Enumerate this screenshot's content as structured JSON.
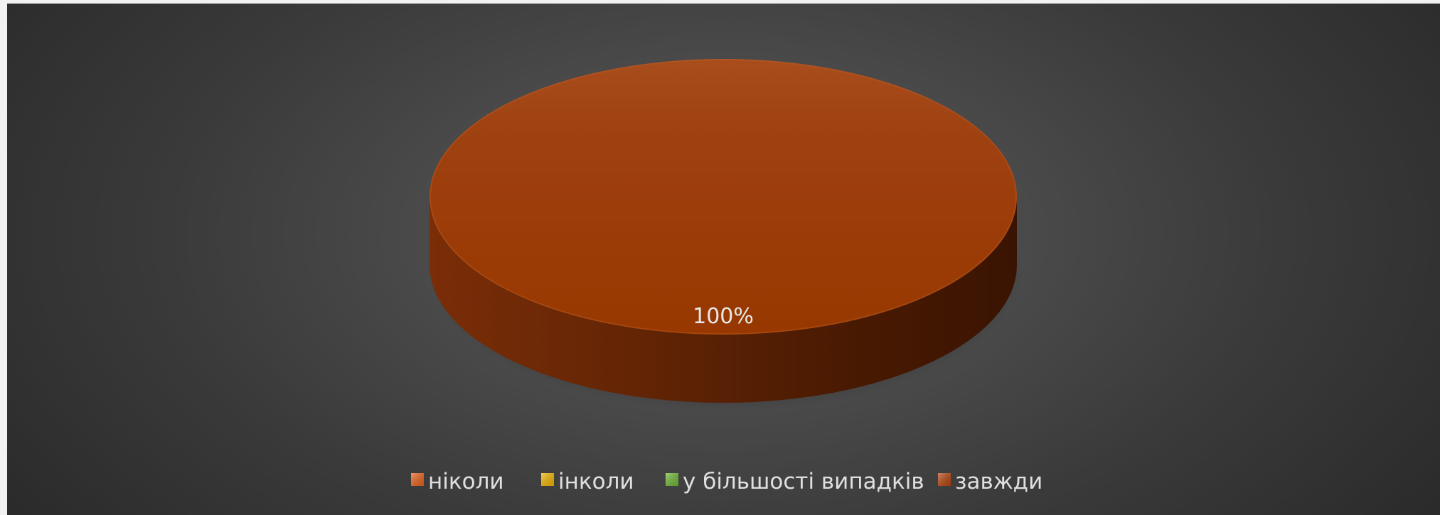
{
  "chart_data": {
    "type": "pie",
    "style": "3d",
    "categories": [
      "ніколи",
      "інколи",
      "у більшості випадків",
      "завжди"
    ],
    "values": [
      0,
      0,
      0,
      100
    ],
    "colors": [
      "#e8611c",
      "#f0b400",
      "#6fb733",
      "#b5440f"
    ],
    "data_labels": [
      "",
      "",
      "",
      "100%"
    ],
    "legend_position": "bottom",
    "grid": false
  }
}
